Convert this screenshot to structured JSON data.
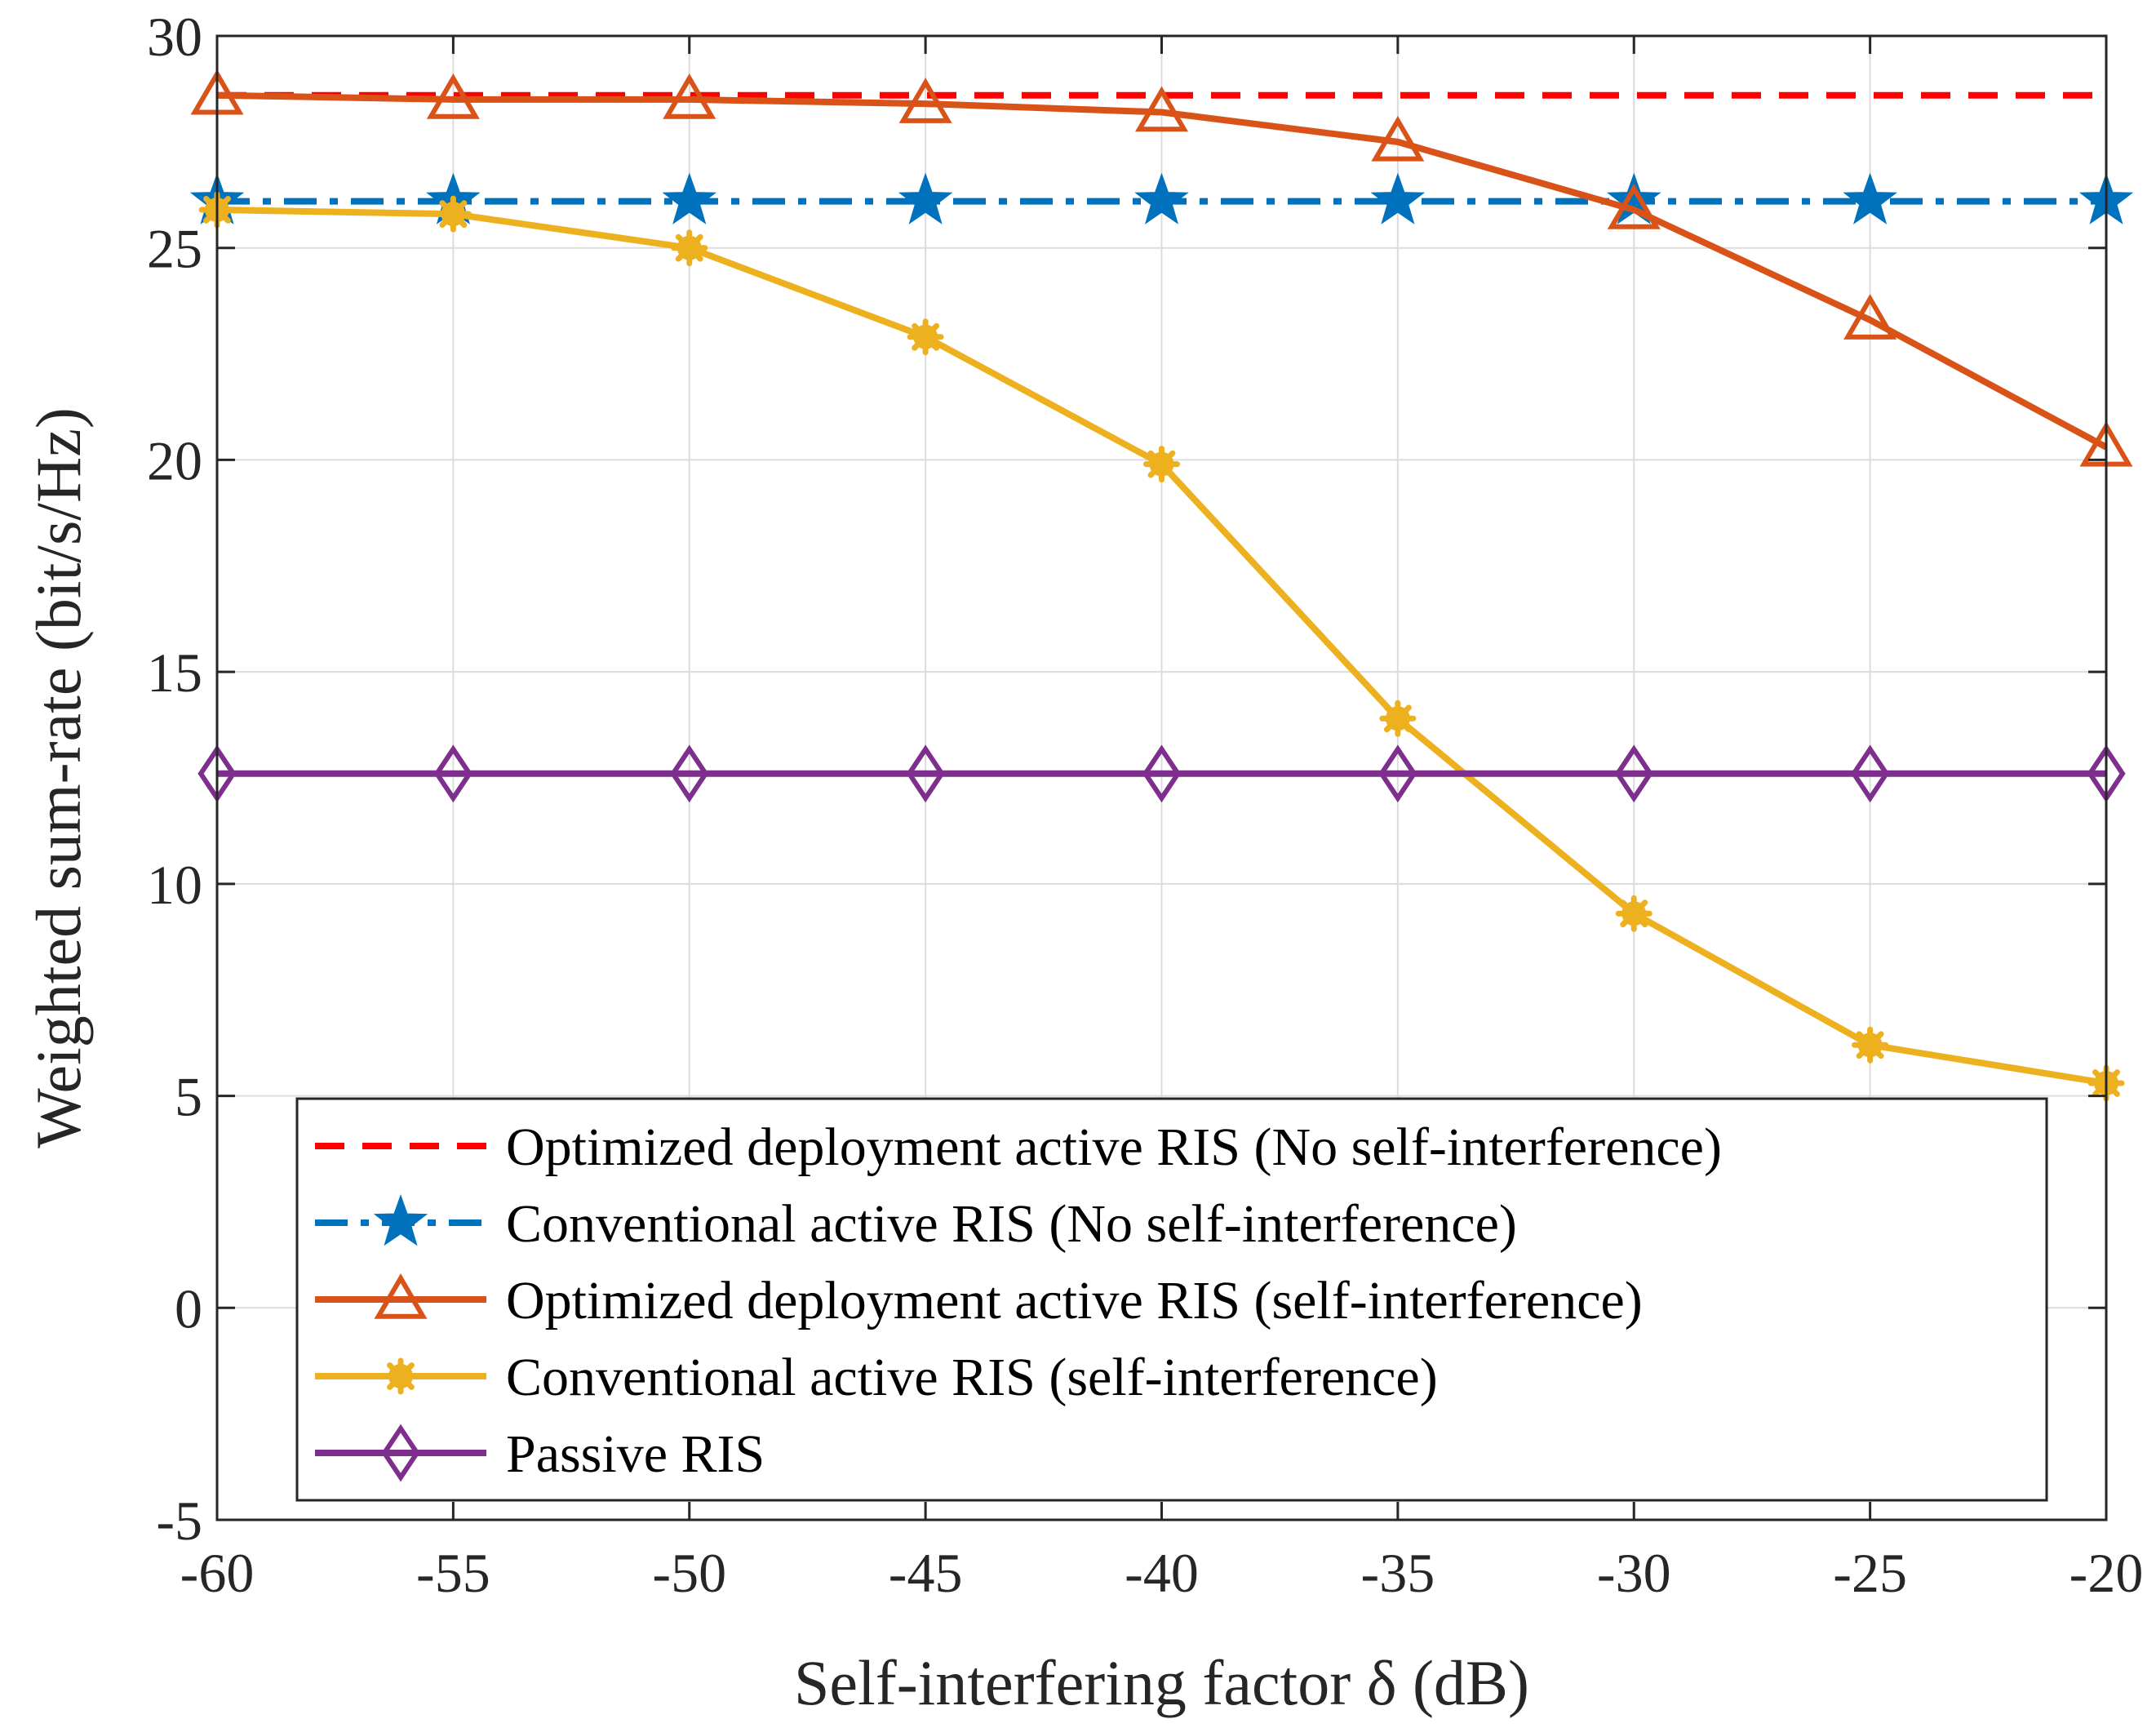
{
  "chart_data": {
    "type": "line",
    "title": "",
    "xlabel": "Self-interfering factor δ (dB)",
    "ylabel": "Weighted sum-rate (bit/s/Hz)",
    "xlim": [
      -60,
      -20
    ],
    "ylim": [
      -5,
      30
    ],
    "grid": true,
    "legend_position": "bottom-center",
    "x": [
      -60,
      -55,
      -50,
      -45,
      -40,
      -35,
      -30,
      -25,
      -20
    ],
    "x_tick_labels": [
      "-60",
      "-55",
      "-50",
      "-45",
      "-40",
      "-35",
      "-30",
      "-25",
      "-20"
    ],
    "y_ticks": [
      -5,
      0,
      5,
      10,
      15,
      20,
      25,
      30
    ],
    "y_tick_labels": [
      "-5",
      "0",
      "5",
      "10",
      "15",
      "20",
      "25",
      "30"
    ],
    "series": [
      {
        "name": "Optimized deployment active RIS (No self-interference)",
        "color": "#ff0000",
        "dash": "dashed",
        "marker": "none",
        "values": [
          28.6,
          28.6,
          28.6,
          28.6,
          28.6,
          28.6,
          28.6,
          28.6,
          28.6
        ]
      },
      {
        "name": "Conventional active RIS (No self-interference)",
        "color": "#0072bd",
        "dash": "dashdot",
        "marker": "star",
        "values": [
          26.1,
          26.1,
          26.1,
          26.1,
          26.1,
          26.1,
          26.1,
          26.1,
          26.1
        ]
      },
      {
        "name": "Optimized deployment active RIS (self-interference)",
        "color": "#d95319",
        "dash": "solid",
        "marker": "triangle",
        "values": [
          28.6,
          28.5,
          28.5,
          28.4,
          28.2,
          27.5,
          25.9,
          23.3,
          20.3
        ]
      },
      {
        "name": "Conventional active RIS (self-interference)",
        "color": "#edb120",
        "dash": "solid",
        "marker": "asterisk",
        "values": [
          25.9,
          25.8,
          25.0,
          22.9,
          19.9,
          13.9,
          9.3,
          6.2,
          5.3
        ]
      },
      {
        "name": "Passive RIS",
        "color": "#7e2f8e",
        "dash": "solid",
        "marker": "diamond",
        "values": [
          12.6,
          12.6,
          12.6,
          12.6,
          12.6,
          12.6,
          12.6,
          12.6,
          12.6
        ]
      }
    ]
  }
}
